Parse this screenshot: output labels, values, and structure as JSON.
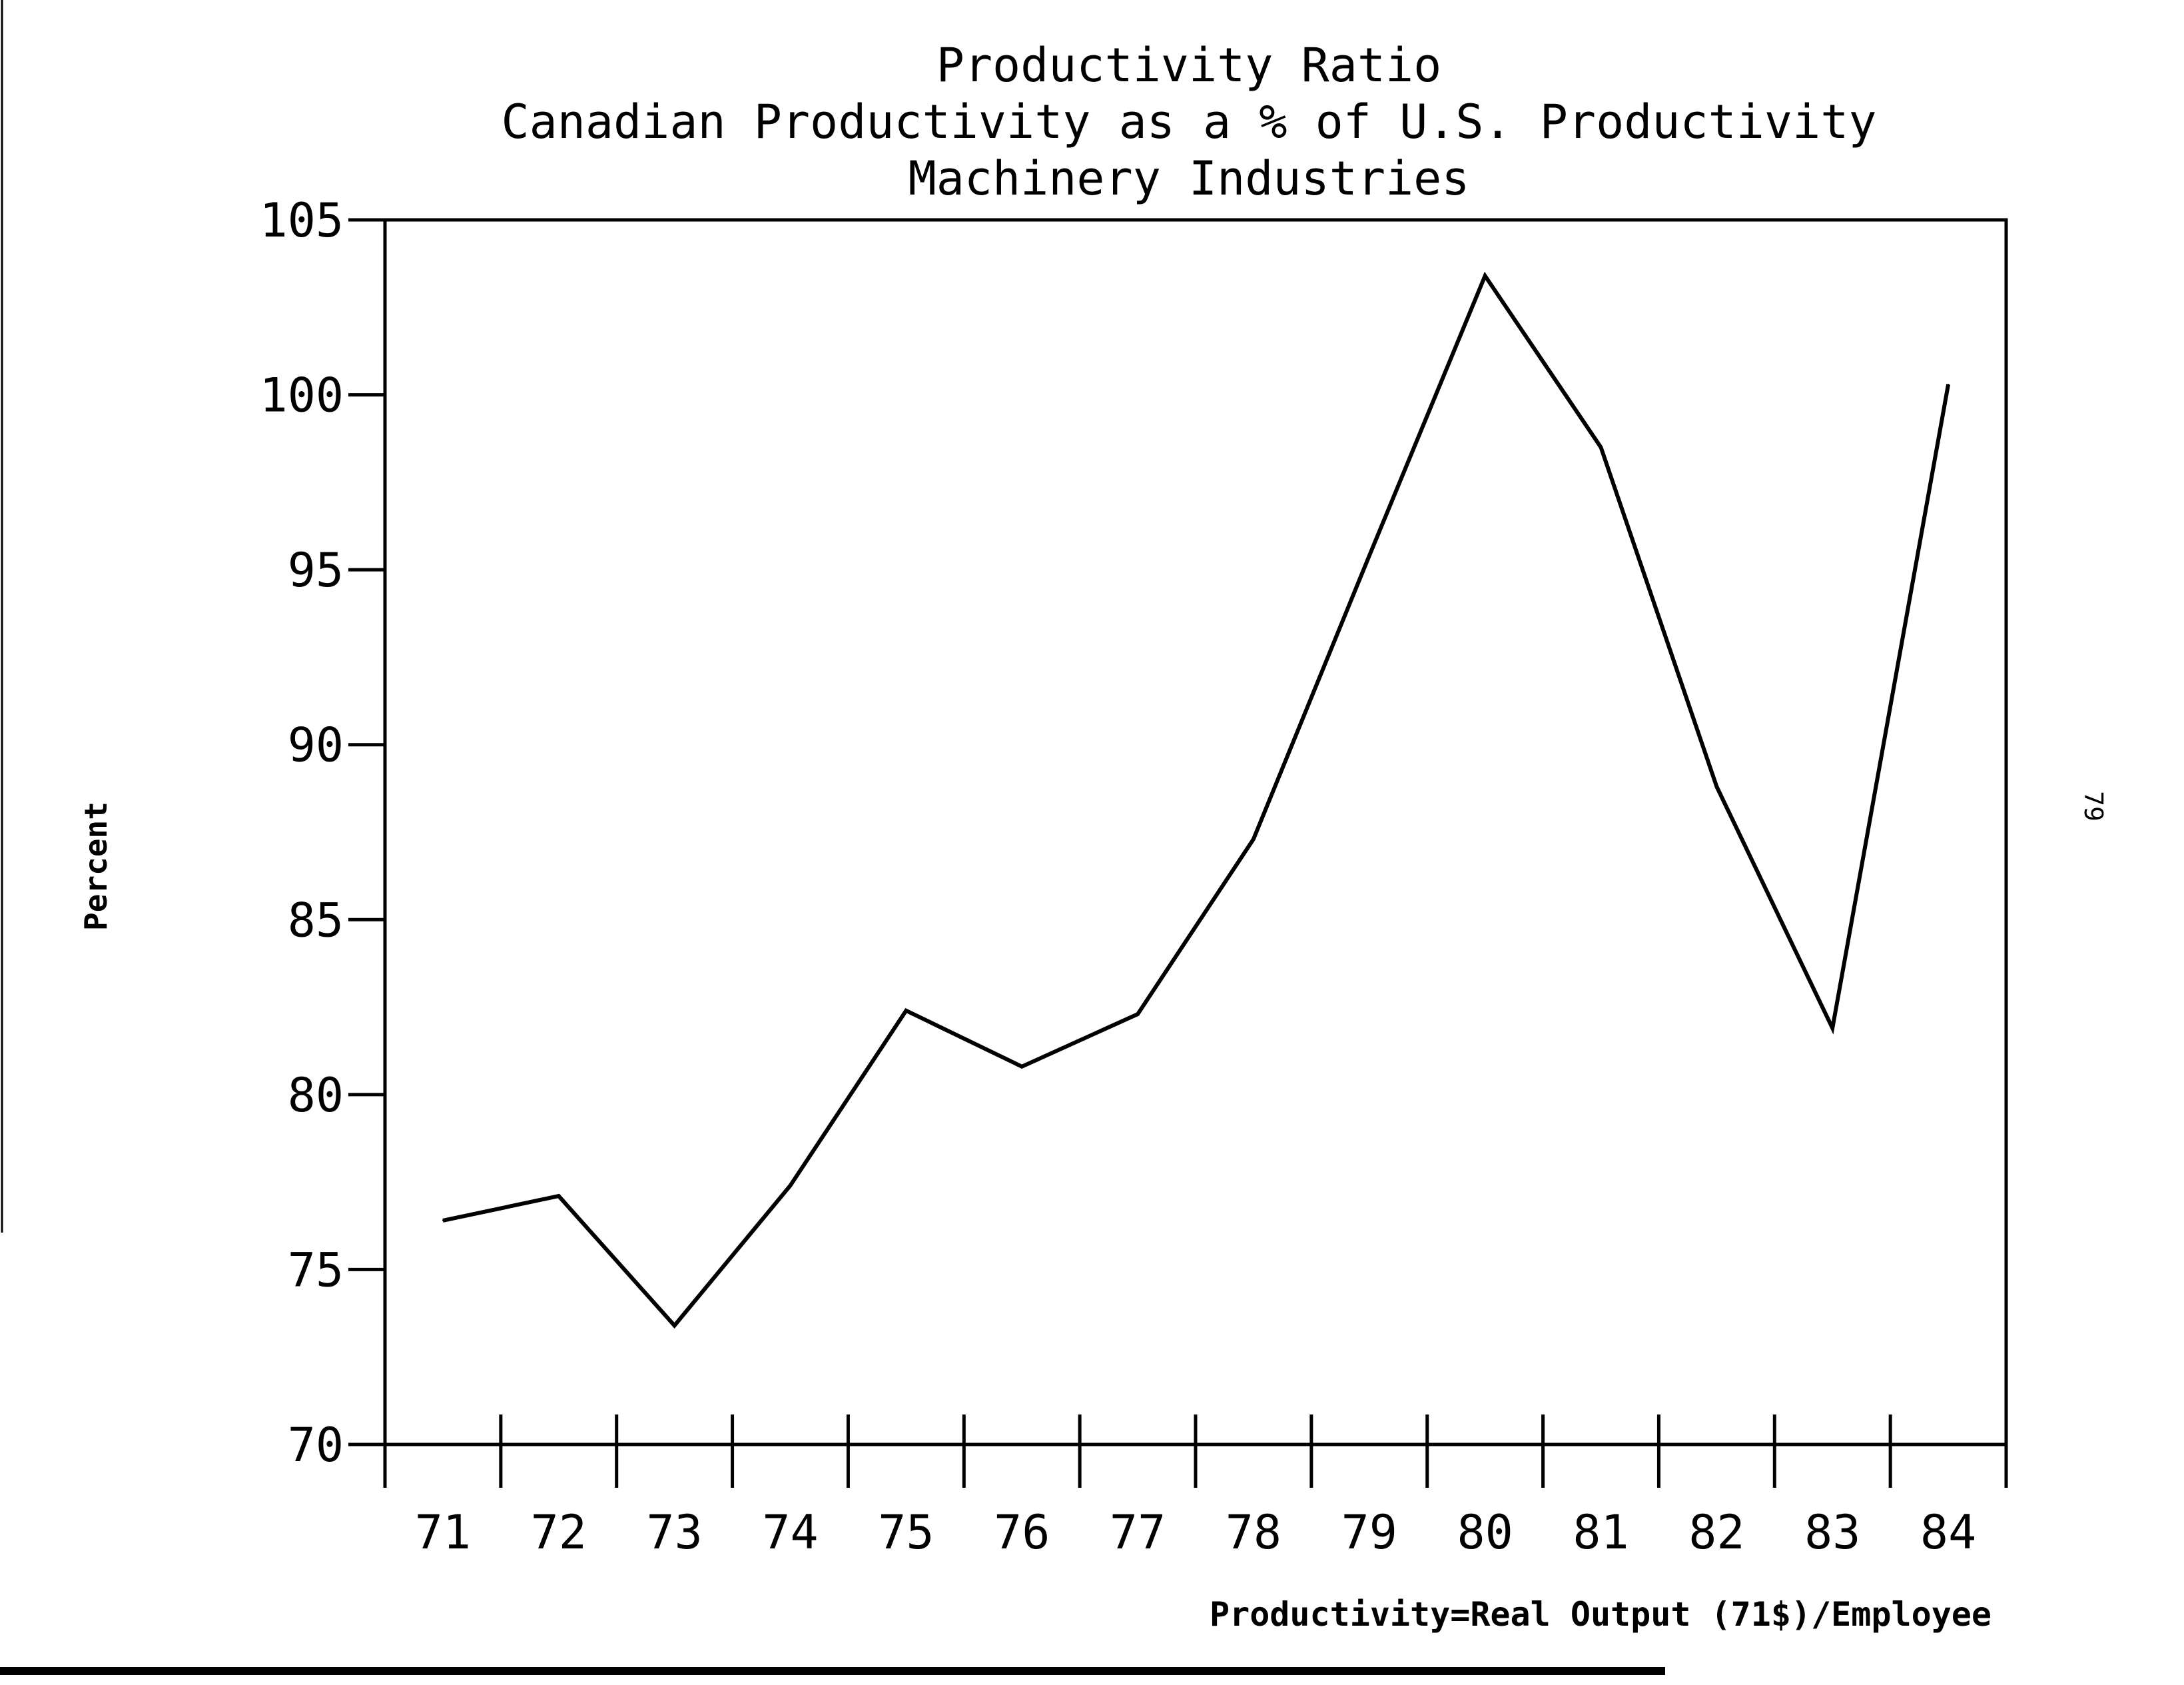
{
  "chart_data": {
    "type": "line",
    "title": "Productivity Ratio",
    "subtitle": [
      "Canadian Productivity as a % of U.S. Productivity",
      "Machinery Industries"
    ],
    "ylabel": "Percent",
    "xlabel": "",
    "footnote": "Productivity=Real Output (71$)/Employee",
    "page_number": "79",
    "categories": [
      "71",
      "72",
      "73",
      "74",
      "75",
      "76",
      "77",
      "78",
      "79",
      "80",
      "81",
      "82",
      "83",
      "84"
    ],
    "series": [
      {
        "values": [
          76.4,
          77.1,
          73.4,
          77.4,
          82.4,
          80.8,
          82.3,
          87.3,
          95.4,
          103.4,
          98.5,
          88.8,
          81.9,
          100.3
        ]
      }
    ],
    "ylim": [
      70,
      105
    ],
    "yticks": [
      70,
      75,
      80,
      85,
      90,
      95,
      100,
      105
    ],
    "grid": false,
    "legend": "none",
    "line_color": "#000000"
  }
}
